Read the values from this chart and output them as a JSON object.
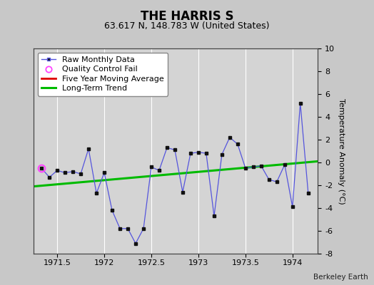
{
  "title": "THE HARRIS S",
  "subtitle": "63.617 N, 148.783 W (United States)",
  "ylabel": "Temperature Anomaly (°C)",
  "watermark": "Berkeley Earth",
  "xlim": [
    1971.25,
    1974.27
  ],
  "ylim": [
    -8,
    10
  ],
  "yticks": [
    -8,
    -6,
    -4,
    -2,
    0,
    2,
    4,
    6,
    8,
    10
  ],
  "xticks": [
    1971.5,
    1972.0,
    1972.5,
    1973.0,
    1973.5,
    1974.0
  ],
  "xtick_labels": [
    "1971.5",
    "1972",
    "1972.5",
    "1973",
    "1973.5",
    "1974"
  ],
  "background_color": "#c8c8c8",
  "plot_bg_color": "#d4d4d4",
  "grid_color": "#ffffff",
  "raw_x": [
    1971.333,
    1971.417,
    1971.5,
    1971.583,
    1971.667,
    1971.75,
    1971.833,
    1971.917,
    1972.0,
    1972.083,
    1972.167,
    1972.25,
    1972.333,
    1972.417,
    1972.5,
    1972.583,
    1972.667,
    1972.75,
    1972.833,
    1972.917,
    1973.0,
    1973.083,
    1973.167,
    1973.25,
    1973.333,
    1973.417,
    1973.5,
    1973.583,
    1973.667,
    1973.75,
    1973.833,
    1973.917,
    1974.0,
    1974.083,
    1974.167
  ],
  "raw_y": [
    -0.5,
    -1.3,
    -0.7,
    -0.9,
    -0.8,
    -1.0,
    1.2,
    -2.7,
    -0.9,
    -4.2,
    -5.8,
    -5.8,
    -7.1,
    -5.8,
    -0.4,
    -0.7,
    1.3,
    1.1,
    -2.6,
    0.8,
    0.9,
    0.8,
    -4.7,
    0.7,
    2.2,
    1.6,
    -0.5,
    -0.4,
    -0.3,
    -1.5,
    -1.7,
    -0.2,
    -3.9,
    5.2,
    -2.7
  ],
  "qc_fail_x": [
    1971.333
  ],
  "qc_fail_y": [
    -0.5
  ],
  "trend_x": [
    1971.25,
    1974.27
  ],
  "trend_y": [
    -2.1,
    0.1
  ],
  "raw_line_color": "#5555dd",
  "raw_marker_color": "#111111",
  "qc_color": "#ff44ff",
  "trend_color": "#00bb00",
  "mavg_color": "#dd0000",
  "legend_fontsize": 8,
  "title_fontsize": 12,
  "subtitle_fontsize": 9,
  "axis_fontsize": 8,
  "ylabel_fontsize": 8
}
